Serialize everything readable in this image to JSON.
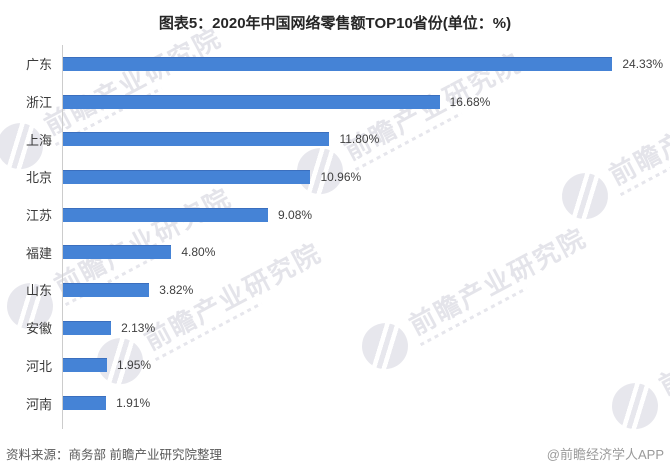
{
  "title": "图表5：2020年中国网络零售额TOP10省份(单位：%)",
  "chart_data": {
    "type": "bar",
    "orientation": "horizontal",
    "title": "图表5：2020年中国网络零售额TOP10省份(单位：%)",
    "categories": [
      "广东",
      "浙江",
      "上海",
      "北京",
      "江苏",
      "福建",
      "山东",
      "安徽",
      "河北",
      "河南"
    ],
    "values": [
      24.33,
      16.68,
      11.8,
      10.96,
      9.08,
      4.8,
      3.82,
      2.13,
      1.95,
      1.91
    ],
    "value_labels": [
      "24.33%",
      "16.68%",
      "11.80%",
      "10.96%",
      "9.08%",
      "4.80%",
      "3.82%",
      "2.13%",
      "1.95%",
      "1.91%"
    ],
    "xlabel": "",
    "ylabel": "",
    "xlim": [
      0,
      26.5
    ],
    "grid": false,
    "legend": null,
    "bar_color": "#4583d6",
    "unit": "%"
  },
  "footer": {
    "source": "资料来源：商务部 前瞻产业研究院整理",
    "brand": "@前瞻经济学人APP"
  },
  "watermark": {
    "text": "前瞻产业研究院",
    "color": "#e4e4ea"
  }
}
